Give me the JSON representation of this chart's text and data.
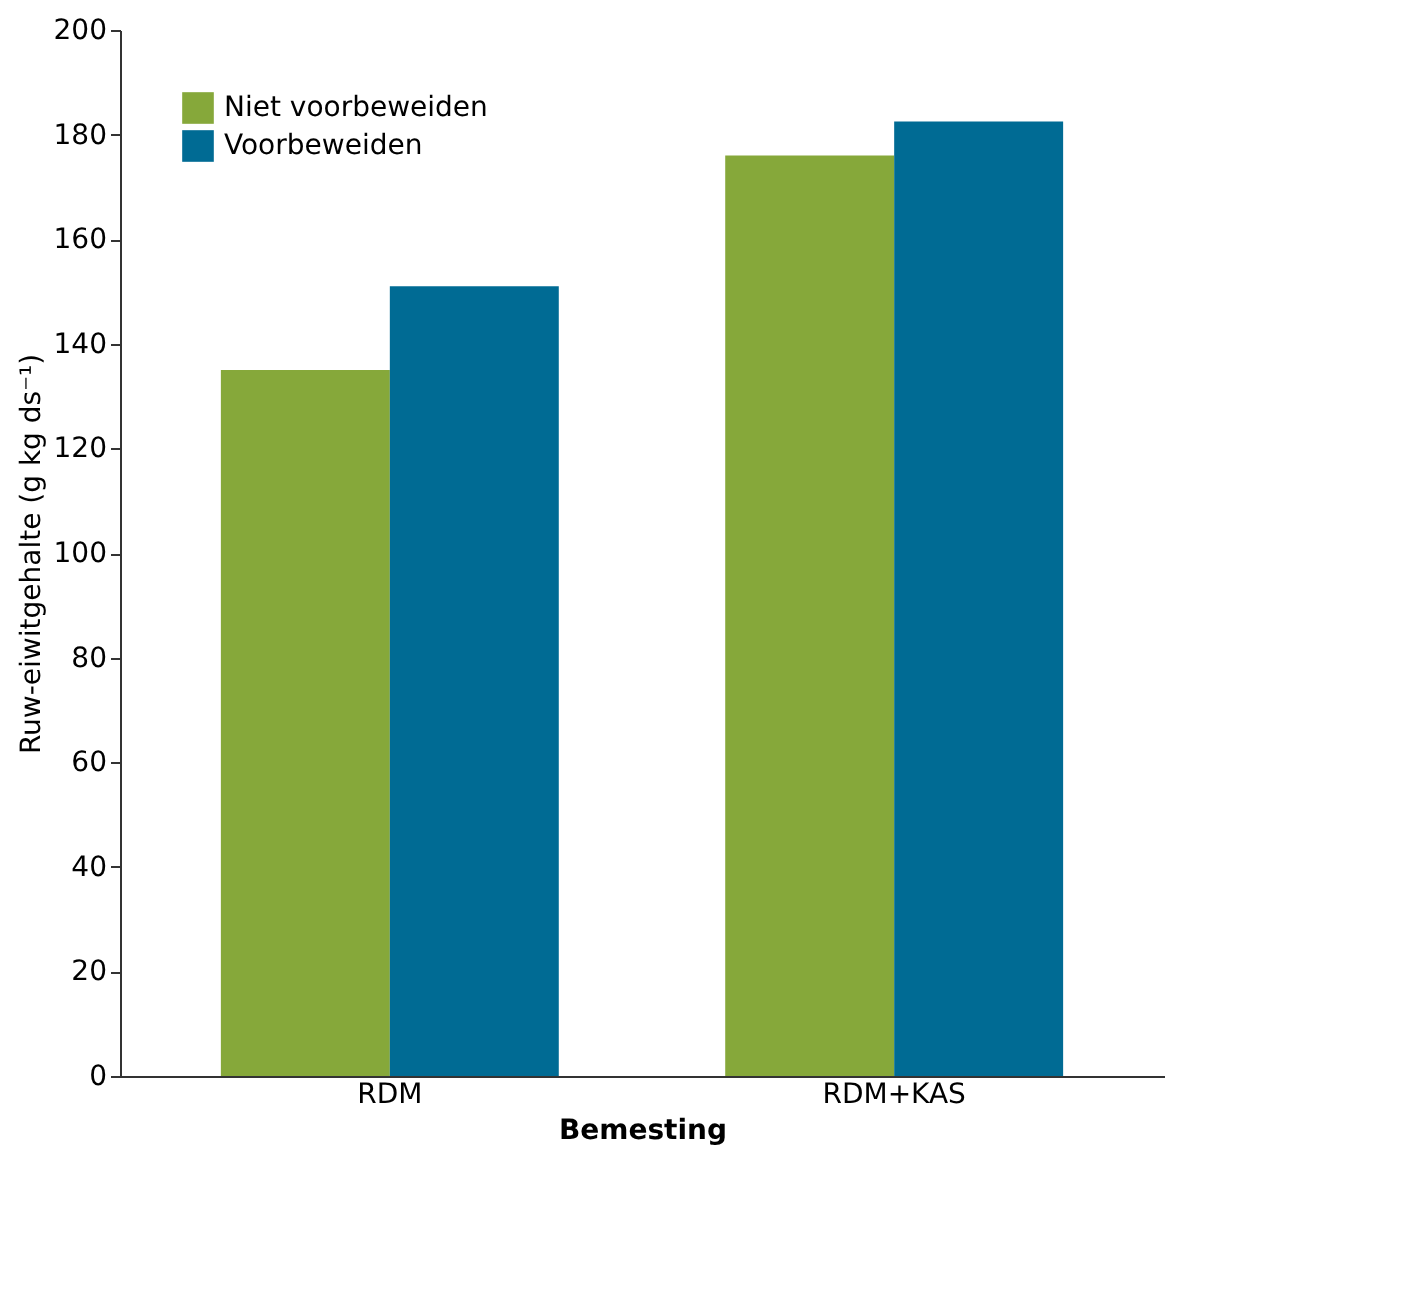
{
  "chart_data": {
    "type": "bar",
    "xlabel": "Bemesting",
    "ylabel": "Ruw-eiwitgehalte (g kg ds⁻¹)",
    "categories": [
      "RDM",
      "RDM+KAS"
    ],
    "series": [
      {
        "name": "Niet voorbeweiden",
        "color": "#86a83a",
        "values": [
          135,
          176
        ]
      },
      {
        "name": "Voorbeweiden",
        "color": "#006b94",
        "values": [
          151,
          182.5
        ]
      }
    ],
    "ylim": [
      0,
      200
    ],
    "yticks": [
      0,
      20,
      40,
      60,
      80,
      100,
      120,
      140,
      160,
      180,
      200
    ],
    "grid": false,
    "legend": "top left"
  }
}
